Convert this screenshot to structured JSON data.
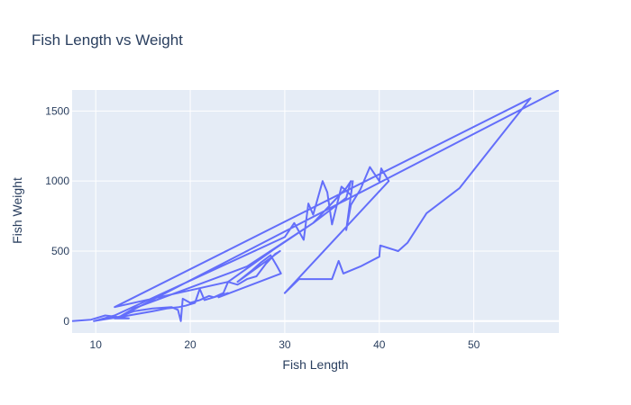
{
  "chart_data": {
    "type": "line",
    "title": "Fish Length vs Weight",
    "xlabel": "Fish Length",
    "ylabel": "Fish Weight",
    "xlim": [
      7.5,
      59
    ],
    "ylim": [
      -85,
      1650
    ],
    "xticks": [
      10,
      20,
      30,
      40,
      50
    ],
    "yticks": [
      0,
      500,
      1000,
      1500
    ],
    "xtick_labels": [
      "10",
      "20",
      "30",
      "40",
      "50"
    ],
    "ytick_labels": [
      "0",
      "500",
      "1000",
      "1500"
    ],
    "grid": true,
    "colors": {
      "background": "#e5ecf6",
      "grid": "#ffffff",
      "line": "#636efa",
      "text": "#2a3f5f"
    },
    "series": [
      {
        "name": "Fish Weight",
        "x": [
          7.5,
          9.5,
          11.0,
          13.5,
          12.0,
          14.0,
          16.0,
          18.0,
          18.7,
          19.0,
          19.2,
          20.0,
          21.0,
          22.0,
          22.5,
          23.5,
          24.0,
          25.0,
          26.0,
          27.0,
          28.0,
          29.0,
          29.5,
          25.0,
          26.5,
          27.5,
          28.5,
          29.2,
          29.6,
          23.0,
          24.0,
          21.5,
          21.0,
          20.5,
          19.5,
          18.8,
          17.5,
          16.0,
          13.5,
          9.8,
          12.0,
          30.0,
          31.0,
          31.5,
          32.0,
          32.5,
          33.0,
          34.0,
          34.5,
          35.0,
          36.0,
          37.0,
          37.2,
          36.5,
          37.0,
          38.0,
          39.0,
          40.0,
          40.2,
          41.0,
          30.0,
          31.5,
          33.0,
          35.0,
          35.7,
          36.2,
          38.0,
          40.0,
          40.1,
          42.0,
          43.0,
          45.0,
          48.5,
          52.0,
          56.0,
          12.0,
          24.0,
          29.0,
          33.0,
          36.5,
          37.0,
          36.5,
          33.0,
          26.0,
          14.0,
          12.5,
          59.0
        ]
      }
    ],
    "y": [
      0,
      10,
      40,
      20,
      20,
      70,
      90,
      100,
      80,
      0,
      160,
      130,
      150,
      180,
      170,
      200,
      280,
      260,
      300,
      320,
      410,
      480,
      500,
      280,
      360,
      420,
      470,
      390,
      340,
      170,
      200,
      150,
      230,
      130,
      110,
      100,
      90,
      70,
      40,
      0,
      40,
      600,
      700,
      640,
      580,
      840,
      760,
      1000,
      920,
      690,
      960,
      900,
      1000,
      650,
      830,
      940,
      1100,
      1000,
      1090,
      1000,
      200,
      300,
      300,
      300,
      430,
      340,
      390,
      460,
      540,
      500,
      560,
      770,
      950,
      1250,
      1590,
      100,
      280,
      520,
      700,
      950,
      1000,
      880,
      700,
      390,
      90,
      30,
      1650
    ]
  }
}
